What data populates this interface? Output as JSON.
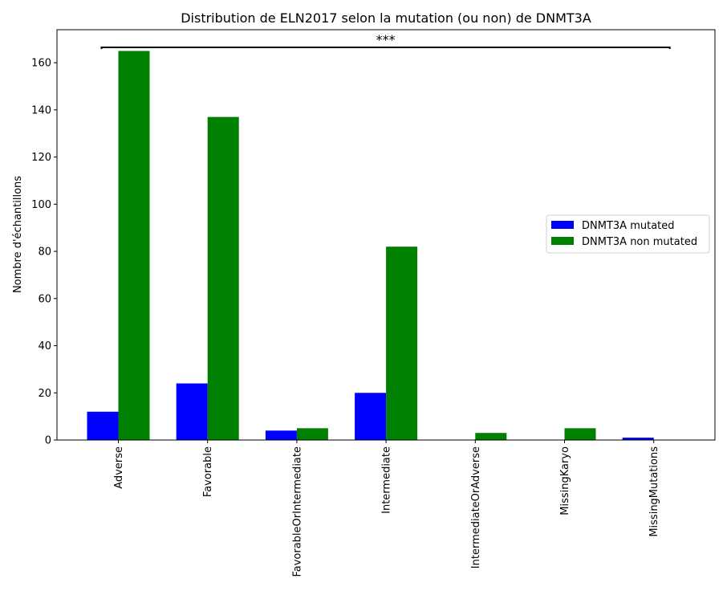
{
  "chart_data": {
    "type": "bar",
    "title": "Distribution de ELN2017 selon la mutation (ou non) de DNMT3A",
    "xlabel": "",
    "ylabel": "Nombre d'échantillons",
    "categories": [
      "Adverse",
      "Favorable",
      "FavorableOrIntermediate",
      "Intermediate",
      "IntermediateOrAdverse",
      "MissingKaryo",
      "MissingMutations"
    ],
    "series": [
      {
        "name": "DNMT3A mutated",
        "color": "#0000ff",
        "values": [
          12,
          24,
          4,
          20,
          0,
          0,
          1
        ]
      },
      {
        "name": "DNMT3A non mutated",
        "color": "#008000",
        "values": [
          165,
          137,
          5,
          82,
          3,
          5,
          0
        ]
      }
    ],
    "ylim": [
      0,
      174
    ],
    "yticks": [
      0,
      20,
      40,
      60,
      80,
      100,
      120,
      140,
      160
    ],
    "grid": false,
    "legend_position": "center-right",
    "annotation": {
      "text": "***",
      "from_category": "Adverse",
      "to_category": "MissingMutations",
      "y": 166.5
    }
  }
}
